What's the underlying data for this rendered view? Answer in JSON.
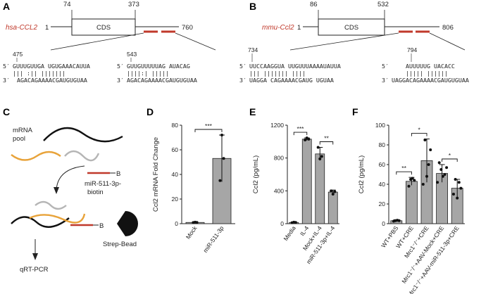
{
  "panels": {
    "A": "A",
    "B": "B",
    "C": "C",
    "D": "D",
    "E": "E",
    "F": "F"
  },
  "panelA": {
    "gene": "hsa-CCL2",
    "start": "1",
    "cds_start": "74",
    "cds_end": "373",
    "end": "760",
    "cds": "CDS",
    "site1": {
      "pos": "475",
      "five": "5′",
      "three": "3′",
      "top": "GUUUGUUGA UGUGAAACAUUA",
      "mid": "  |||  :||   |||||||",
      "bot": "AGACAGAAAACGAUGUGUAA"
    },
    "site2": {
      "pos": "543",
      "five": "5′",
      "three": "3′",
      "top": "GUUGUUUUUAG AUACAG",
      "mid": "   ||||:|    |||||",
      "bot": "AGACAGAAAACGAUGUGUAA"
    }
  },
  "panelB": {
    "gene": "mmu-Ccl2",
    "start": "1",
    "cds_start": "86",
    "cds_end": "532",
    "end": "806",
    "cds": "CDS",
    "site1": {
      "pos": "734",
      "five": "5′",
      "three": "3′",
      "top": "UUCCAAGGUA  UUGUUUAAAAUAUUA",
      "mid": "   |||    |||||||     ||||",
      "bot": "UAGGA   CAGAAAACGAUG   UGUAA"
    },
    "site2": {
      "pos": "794",
      "five": "5′",
      "three": "3′",
      "top": "AUUUUUG UACACC",
      "mid": "  ||||| ||||||",
      "bot": "UAGGACAGAAAACGAUGUGUAA"
    }
  },
  "panelC": {
    "pool": "mRNA pool",
    "probe": "miR-511-3p-\nbiotin",
    "probe1": "miR-511-3p-",
    "probe2": "biotin",
    "b": "B",
    "bead": "Strep-Bead",
    "readout": "qRT-PCR"
  },
  "colors": {
    "accent": "#c0392b",
    "bar": "#a6a6a6",
    "orange": "#e8a33a",
    "grey_rna": "#b5b5b5"
  },
  "chart_data": [
    {
      "id": "D",
      "type": "bar",
      "categories": [
        "Mock",
        "miR-511-3p"
      ],
      "values": [
        1.0,
        53
      ],
      "points": [
        [
          0.9,
          1.2,
          1.0
        ],
        [
          35,
          72,
          53
        ]
      ],
      "errors": [
        0.4,
        19
      ],
      "ylabel": "Ccl2 mRNA Fold Change",
      "ylim": [
        0,
        80
      ],
      "yticks": [
        0,
        20,
        40,
        60,
        80
      ],
      "sig": [
        {
          "a": 0,
          "b": 1,
          "text": "***"
        }
      ]
    },
    {
      "id": "E",
      "type": "bar",
      "categories": [
        "Media",
        "IL-4",
        "Mock+IL-4",
        "miR-511-3p+IL-4"
      ],
      "values": [
        15,
        1030,
        850,
        385
      ],
      "points": [
        [
          12,
          18,
          15
        ],
        [
          1020,
          1045,
          1030
        ],
        [
          930,
          790,
          820
        ],
        [
          400,
          360,
          390
        ]
      ],
      "errors": [
        5,
        15,
        80,
        25
      ],
      "ylabel": "Ccl2 (pg/mL)",
      "ylim": [
        0,
        1200
      ],
      "yticks": [
        0,
        400,
        800,
        1200
      ],
      "sig": [
        {
          "a": 0,
          "b": 1,
          "text": "***"
        },
        {
          "a": 2,
          "b": 3,
          "text": "**"
        }
      ]
    },
    {
      "id": "F",
      "type": "bar",
      "categories": [
        "WT+PBS",
        "WT+CRE",
        "Mrc1⁻/⁻+CRE",
        "Mrc1⁻/⁻+AAV-Mock+CRE",
        "Mrc1⁻/⁻+AAV-miR-511-3p+CRE"
      ],
      "values": [
        3,
        43,
        64,
        51,
        36
      ],
      "points": [
        [
          2.5,
          3,
          3.5,
          3
        ],
        [
          38,
          45,
          46,
          44
        ],
        [
          40,
          85,
          48,
          60,
          75
        ],
        [
          42,
          62,
          55,
          48,
          50,
          57
        ],
        [
          30,
          45,
          26,
          42,
          36
        ]
      ],
      "errors": [
        1,
        4,
        22,
        9,
        9
      ],
      "ylabel": "Ccl2 (pg/mL)",
      "ylim": [
        0,
        100
      ],
      "yticks": [
        0,
        20,
        40,
        60,
        80,
        100
      ],
      "sig": [
        {
          "a": 0,
          "b": 1,
          "text": "**"
        },
        {
          "a": 1,
          "b": 2,
          "text": "*"
        },
        {
          "a": 3,
          "b": 4,
          "text": "*"
        }
      ]
    }
  ]
}
